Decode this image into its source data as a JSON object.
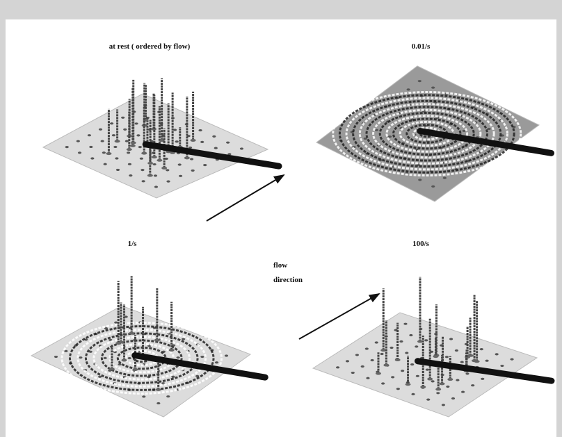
{
  "panels": [
    {
      "label": "at rest ( ordered by flow)"
    },
    {
      "label": "0.01/s"
    },
    {
      "label": "1/s"
    },
    {
      "label": "100/s"
    }
  ],
  "annotation": {
    "lines": [
      "flow",
      "direction"
    ]
  }
}
